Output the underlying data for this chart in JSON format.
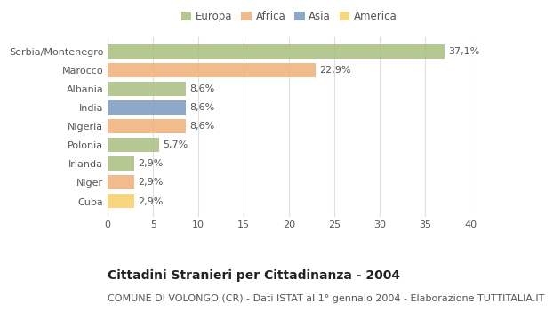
{
  "categories": [
    "Serbia/Montenegro",
    "Marocco",
    "Albania",
    "India",
    "Nigeria",
    "Polonia",
    "Irlanda",
    "Niger",
    "Cuba"
  ],
  "values": [
    37.1,
    22.9,
    8.6,
    8.6,
    8.6,
    5.7,
    2.9,
    2.9,
    2.9
  ],
  "labels": [
    "37,1%",
    "22,9%",
    "8,6%",
    "8,6%",
    "8,6%",
    "5,7%",
    "2,9%",
    "2,9%",
    "2,9%"
  ],
  "colors": [
    "#a8bf7f",
    "#f0b07a",
    "#a8bf7f",
    "#7a9abf",
    "#f0b07a",
    "#a8bf7f",
    "#a8bf7f",
    "#f0b07a",
    "#f5d06a"
  ],
  "legend_labels": [
    "Europa",
    "Africa",
    "Asia",
    "America"
  ],
  "legend_colors": [
    "#a8bf7f",
    "#f0b07a",
    "#7a9abf",
    "#f5d06a"
  ],
  "title": "Cittadini Stranieri per Cittadinanza - 2004",
  "subtitle": "COMUNE DI VOLONGO (CR) - Dati ISTAT al 1° gennaio 2004 - Elaborazione TUTTITALIA.IT",
  "xlim": [
    0,
    40
  ],
  "xticks": [
    0,
    5,
    10,
    15,
    20,
    25,
    30,
    35,
    40
  ],
  "figure_background": "#ffffff",
  "plot_background": "#ffffff",
  "grid_color": "#e0e0e0",
  "bar_height": 0.75,
  "title_fontsize": 10,
  "subtitle_fontsize": 8,
  "label_fontsize": 8,
  "tick_fontsize": 8,
  "legend_fontsize": 8.5
}
